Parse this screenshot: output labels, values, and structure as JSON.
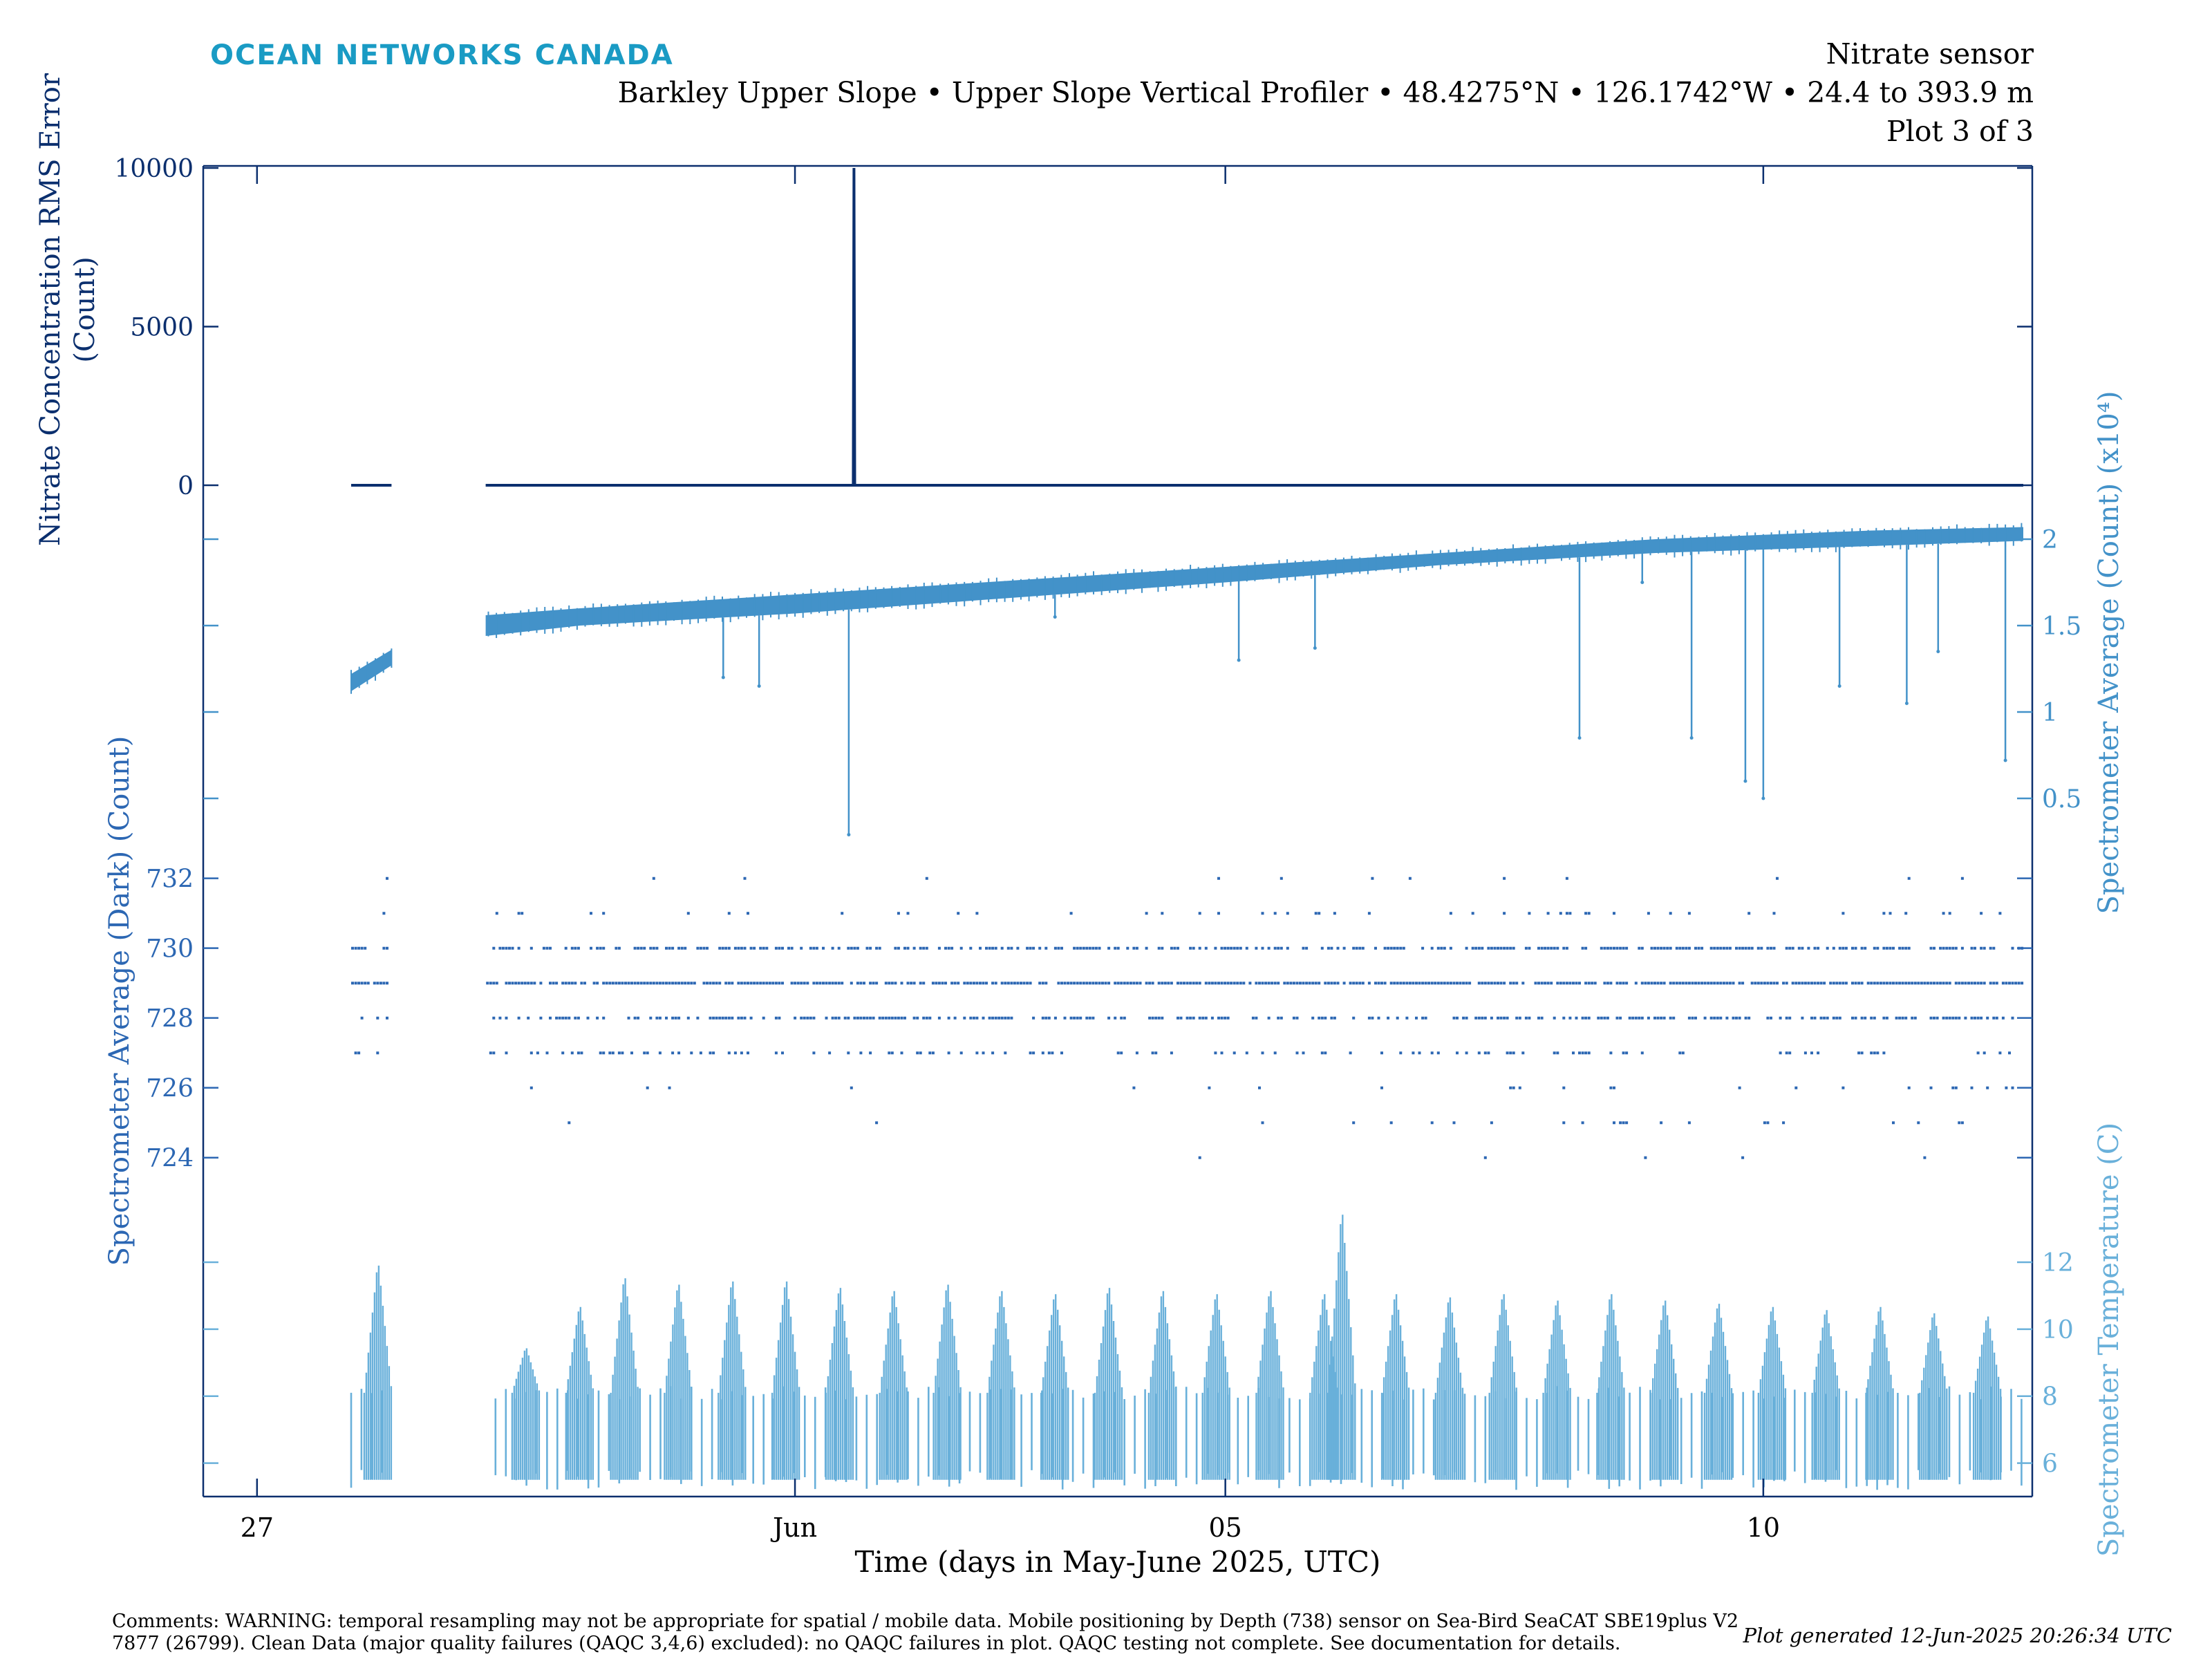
{
  "header": {
    "logo": "OCEAN NETWORKS CANADA",
    "title_line1": "Nitrate sensor",
    "title_line2": "Barkley Upper Slope • Upper Slope Vertical Profiler • 48.4275°N • 126.1742°W • 24.4 to 393.9 m",
    "title_line3": "Plot 3 of 3"
  },
  "colors": {
    "dark_blue": "#0b2f6e",
    "mid_blue": "#2c67b3",
    "light_blue": "#4392c9",
    "temp_blue": "#69b0da",
    "logo": "#1a9bc4"
  },
  "xaxis": {
    "label": "Time (days in May-June 2025, UTC)",
    "ticks": [
      "27",
      "Jun",
      "05",
      "10"
    ],
    "range": [
      "2025-05-26T12:00",
      "2025-06-12T12:00"
    ]
  },
  "chart_data": [
    {
      "type": "line",
      "name": "rms",
      "ylabel": "Nitrate Concentration RMS Error (Count)",
      "yticks": [
        "10000",
        "5000",
        "0"
      ],
      "ylim": [
        0,
        10000
      ],
      "series": [
        {
          "values_note": "",
          "x": [
            "2025-05-27T21:00",
            "2025-05-28T06:00",
            "2025-05-29T03:00",
            "2025-06-01T13:00",
            "2025-06-01T13:10",
            "2025-06-01T13:20",
            "2025-06-12T10:00"
          ],
          "y": [
            0,
            0,
            0,
            0,
            10000,
            0,
            0
          ]
        }
      ]
    },
    {
      "type": "area",
      "name": "spectrometer_average",
      "ylabel": "Spectrometer Average (Count) (x10⁴)",
      "yticks": [
        "2",
        "1.5",
        "1",
        "0.5"
      ],
      "ylim": [
        0.3,
        2.3
      ],
      "band": {
        "x": [
          "2025-05-27T21:00",
          "2025-05-28T06:00",
          "2025-05-29T03:00",
          "2025-05-30T00:00",
          "2025-06-01T00:00",
          "2025-06-03T00:00",
          "2025-06-05T00:00",
          "2025-06-07T00:00",
          "2025-06-09T00:00",
          "2025-06-11T00:00",
          "2025-06-12T10:00"
        ],
        "low": [
          1.12,
          1.27,
          1.44,
          1.5,
          1.57,
          1.66,
          1.75,
          1.85,
          1.92,
          1.96,
          1.99
        ],
        "high": [
          1.22,
          1.36,
          1.56,
          1.6,
          1.68,
          1.76,
          1.84,
          1.92,
          2.0,
          2.05,
          2.07
        ]
      },
      "spikes": [
        {
          "x": "2025-05-31T08:00",
          "y": 1.2
        },
        {
          "x": "2025-05-31T16:00",
          "y": 1.15
        },
        {
          "x": "2025-06-01T12:00",
          "y": 0.29
        },
        {
          "x": "2025-06-03T10:00",
          "y": 1.55
        },
        {
          "x": "2025-06-05T03:00",
          "y": 1.3
        },
        {
          "x": "2025-06-05T20:00",
          "y": 1.37
        },
        {
          "x": "2025-06-08T07:00",
          "y": 0.85
        },
        {
          "x": "2025-06-08T21:00",
          "y": 1.75
        },
        {
          "x": "2025-06-09T08:00",
          "y": 0.85
        },
        {
          "x": "2025-06-09T20:00",
          "y": 0.6
        },
        {
          "x": "2025-06-10T00:00",
          "y": 0.5
        },
        {
          "x": "2025-06-10T17:00",
          "y": 1.15
        },
        {
          "x": "2025-06-11T08:00",
          "y": 1.05
        },
        {
          "x": "2025-06-11T15:00",
          "y": 1.35
        },
        {
          "x": "2025-06-12T06:00",
          "y": 0.72
        }
      ]
    },
    {
      "type": "scatter",
      "name": "dark",
      "ylabel": "Spectrometer Average (Dark) (Count)",
      "yticks": [
        "732",
        "730",
        "728",
        "726",
        "724"
      ],
      "ylim": [
        723.4,
        733.3
      ],
      "levels": [
        723,
        724,
        725,
        726,
        727,
        728,
        729,
        730,
        731,
        732
      ],
      "level_density": [
        0.0,
        0.01,
        0.04,
        0.05,
        0.22,
        0.45,
        0.82,
        0.6,
        0.1,
        0.02
      ],
      "late_low_values": [
        724,
        725,
        726
      ],
      "x_start": "2025-05-27T21:00",
      "x_end": "2025-06-12T10:00",
      "gap": [
        "2025-05-28T06:00",
        "2025-05-29T03:00"
      ]
    },
    {
      "type": "line",
      "name": "temperature",
      "ylabel": "Spectrometer Temperature (C)",
      "yticks": [
        "12",
        "10",
        "8",
        "6"
      ],
      "ylim": [
        5.0,
        14.5
      ],
      "cycle": {
        "period_hours": 4.6,
        "base_low": 5.2,
        "base_high": 8.1
      },
      "peaks": [
        {
          "x": "2025-05-28T03:00",
          "y": 12.1
        },
        {
          "x": "2025-05-29T12:00",
          "y": 9.5
        },
        {
          "x": "2025-05-30T00:00",
          "y": 10.8
        },
        {
          "x": "2025-05-30T10:00",
          "y": 11.7
        },
        {
          "x": "2025-05-30T22:00",
          "y": 11.5
        },
        {
          "x": "2025-05-31T10:00",
          "y": 11.6
        },
        {
          "x": "2025-05-31T22:00",
          "y": 11.6
        },
        {
          "x": "2025-06-01T10:00",
          "y": 11.4
        },
        {
          "x": "2025-06-01T22:00",
          "y": 11.3
        },
        {
          "x": "2025-06-02T10:00",
          "y": 11.5
        },
        {
          "x": "2025-06-02T22:00",
          "y": 11.3
        },
        {
          "x": "2025-06-03T10:00",
          "y": 11.2
        },
        {
          "x": "2025-06-03T22:00",
          "y": 11.4
        },
        {
          "x": "2025-06-04T10:00",
          "y": 11.3
        },
        {
          "x": "2025-06-04T22:00",
          "y": 11.2
        },
        {
          "x": "2025-06-05T10:00",
          "y": 11.3
        },
        {
          "x": "2025-06-05T22:00",
          "y": 11.2
        },
        {
          "x": "2025-06-06T02:00",
          "y": 13.7
        },
        {
          "x": "2025-06-06T14:00",
          "y": 11.2
        },
        {
          "x": "2025-06-07T02:00",
          "y": 11.1
        },
        {
          "x": "2025-06-07T14:00",
          "y": 11.2
        },
        {
          "x": "2025-06-08T02:00",
          "y": 11.0
        },
        {
          "x": "2025-06-08T14:00",
          "y": 11.2
        },
        {
          "x": "2025-06-09T02:00",
          "y": 11.0
        },
        {
          "x": "2025-06-09T14:00",
          "y": 10.9
        },
        {
          "x": "2025-06-10T02:00",
          "y": 10.8
        },
        {
          "x": "2025-06-10T14:00",
          "y": 10.7
        },
        {
          "x": "2025-06-11T02:00",
          "y": 10.8
        },
        {
          "x": "2025-06-11T14:00",
          "y": 10.6
        },
        {
          "x": "2025-06-12T02:00",
          "y": 10.5
        }
      ]
    }
  ],
  "footer": {
    "comments_line1": "Comments: WARNING: temporal resampling may not be appropriate for spatial / mobile data. Mobile positioning by Depth (738) sensor on Sea-Bird SeaCAT SBE19plus V2",
    "comments_line2": "7877 (26799). Clean Data (major quality failures (QAQC 3,4,6) excluded): no QAQC failures in plot. QAQC testing not complete. See documentation for details.",
    "generated": "Plot generated 12-Jun-2025 20:26:34 UTC"
  }
}
